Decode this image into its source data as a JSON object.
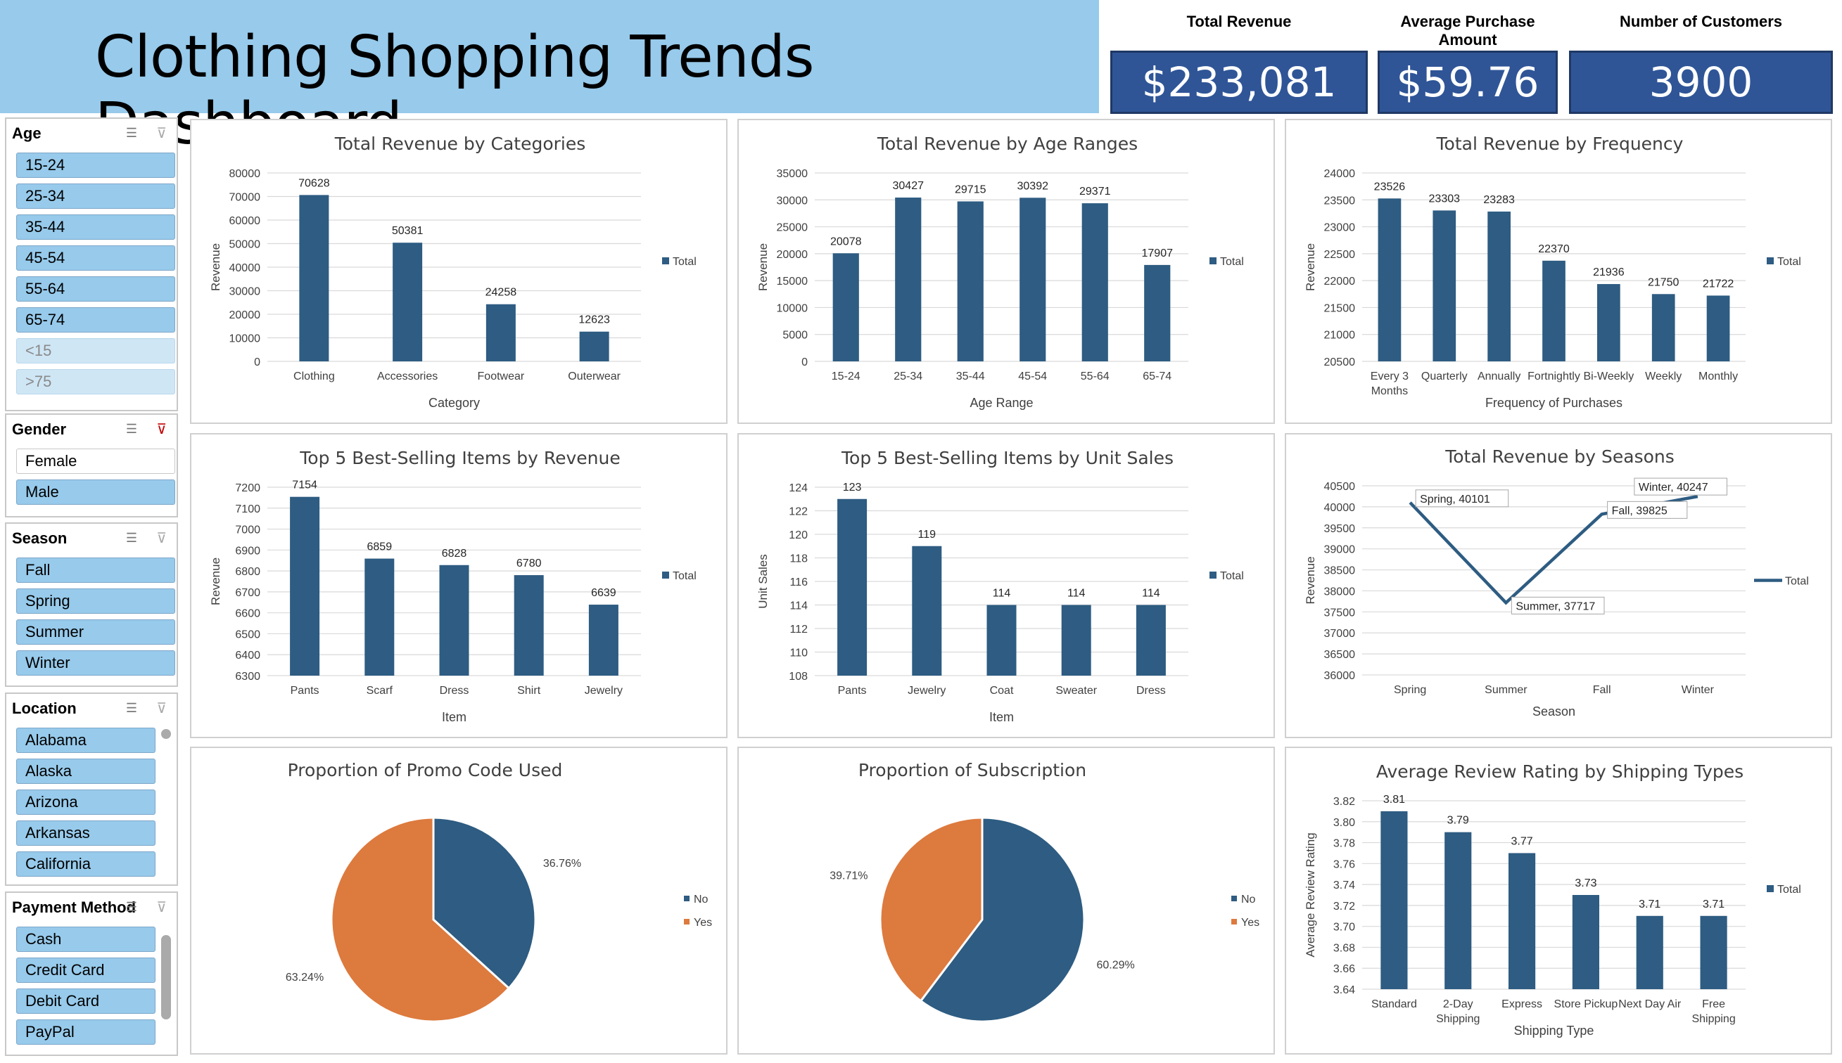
{
  "header": {
    "title": "Clothing Shopping Trends Dashboard",
    "kpis": [
      {
        "label": "Total Revenue",
        "value": "$233,081"
      },
      {
        "label": "Average Purchase Amount",
        "value": "$59.76"
      },
      {
        "label": "Number of Customers",
        "value": "3900"
      }
    ]
  },
  "slicers": {
    "age": {
      "title": "Age",
      "items": [
        {
          "label": "15-24",
          "state": "selected"
        },
        {
          "label": "25-34",
          "state": "selected"
        },
        {
          "label": "35-44",
          "state": "selected"
        },
        {
          "label": "45-54",
          "state": "selected"
        },
        {
          "label": "55-64",
          "state": "selected"
        },
        {
          "label": "65-74",
          "state": "selected"
        },
        {
          "label": "<15",
          "state": "nodata"
        },
        {
          "label": ">75",
          "state": "nodata"
        }
      ]
    },
    "gender": {
      "title": "Gender",
      "items": [
        {
          "label": "Female",
          "state": "unselected"
        },
        {
          "label": "Male",
          "state": "selected"
        }
      ]
    },
    "season": {
      "title": "Season",
      "items": [
        {
          "label": "Fall",
          "state": "selected"
        },
        {
          "label": "Spring",
          "state": "selected"
        },
        {
          "label": "Summer",
          "state": "selected"
        },
        {
          "label": "Winter",
          "state": "selected"
        }
      ]
    },
    "location": {
      "title": "Location",
      "items": [
        {
          "label": "Alabama",
          "state": "selected"
        },
        {
          "label": "Alaska",
          "state": "selected"
        },
        {
          "label": "Arizona",
          "state": "selected"
        },
        {
          "label": "Arkansas",
          "state": "selected"
        },
        {
          "label": "California",
          "state": "selected"
        }
      ]
    },
    "payment": {
      "title": "Payment Method",
      "items": [
        {
          "label": "Cash",
          "state": "selected"
        },
        {
          "label": "Credit Card",
          "state": "selected"
        },
        {
          "label": "Debit Card",
          "state": "selected"
        },
        {
          "label": "PayPal",
          "state": "selected"
        }
      ]
    }
  },
  "colors": {
    "bar": "#2E5C82",
    "orange": "#DD7A3E",
    "banner": "#97CAEB",
    "kpi": "#2F5597"
  },
  "chart_data": [
    {
      "id": "categories",
      "type": "bar",
      "title": "Total Revenue by Categories",
      "xlabel": "Category",
      "ylabel": "Revenue",
      "categories": [
        "Clothing",
        "Accessories",
        "Footwear",
        "Outerwear"
      ],
      "values": [
        70628,
        50381,
        24258,
        12623
      ],
      "ylim": [
        0,
        80000
      ],
      "yticks": [
        0,
        10000,
        20000,
        30000,
        40000,
        50000,
        60000,
        70000,
        80000
      ],
      "legend": "Total",
      "legend_position": "right",
      "grid": true
    },
    {
      "id": "age",
      "type": "bar",
      "title": "Total Revenue by Age Ranges",
      "xlabel": "Age Range",
      "ylabel": "Revenue",
      "categories": [
        "15-24",
        "25-34",
        "35-44",
        "45-54",
        "55-64",
        "65-74"
      ],
      "values": [
        20078,
        30427,
        29715,
        30392,
        29371,
        17907
      ],
      "ylim": [
        0,
        35000
      ],
      "yticks": [
        0,
        5000,
        10000,
        15000,
        20000,
        25000,
        30000,
        35000
      ],
      "legend": "Total",
      "legend_position": "right",
      "grid": true
    },
    {
      "id": "frequency",
      "type": "bar",
      "title": "Total Revenue by Frequency",
      "xlabel": "Frequency of Purchases",
      "ylabel": "Revenue",
      "categories": [
        [
          "Every 3",
          "Months"
        ],
        [
          "Quarterly"
        ],
        [
          "Annually"
        ],
        [
          "Fortnightly"
        ],
        [
          "Bi-Weekly"
        ],
        [
          "Weekly"
        ],
        [
          "Monthly"
        ]
      ],
      "values": [
        23526,
        23303,
        23283,
        22370,
        21936,
        21750,
        21722
      ],
      "ylim": [
        20500,
        24000
      ],
      "yticks": [
        20500,
        21000,
        21500,
        22000,
        22500,
        23000,
        23500,
        24000
      ],
      "legend": "Total",
      "legend_position": "right",
      "grid": true
    },
    {
      "id": "top5rev",
      "type": "bar",
      "title": "Top 5 Best-Selling Items  by Revenue",
      "xlabel": "Item",
      "ylabel": "Revenue",
      "categories": [
        "Pants",
        "Scarf",
        "Dress",
        "Shirt",
        "Jewelry"
      ],
      "values": [
        7154,
        6859,
        6828,
        6780,
        6639
      ],
      "ylim": [
        6300,
        7200
      ],
      "yticks": [
        6300,
        6400,
        6500,
        6600,
        6700,
        6800,
        6900,
        7000,
        7100,
        7200
      ],
      "legend": "Total",
      "legend_position": "right",
      "grid": true
    },
    {
      "id": "top5units",
      "type": "bar",
      "title": "Top 5 Best-Selling Items by Unit Sales",
      "xlabel": "Item",
      "ylabel": "Unit Sales",
      "categories": [
        "Pants",
        "Jewelry",
        "Coat",
        "Sweater",
        "Dress"
      ],
      "values": [
        123,
        119,
        114,
        114,
        114
      ],
      "ylim": [
        108,
        124
      ],
      "yticks": [
        108,
        110,
        112,
        114,
        116,
        118,
        120,
        122,
        124
      ],
      "legend": "Total",
      "legend_position": "right",
      "grid": true
    },
    {
      "id": "seasons",
      "type": "line",
      "title": "Total Revenue by Seasons",
      "xlabel": "Season",
      "ylabel": "Revenue",
      "categories": [
        "Spring",
        "Summer",
        "Fall",
        "Winter"
      ],
      "values": [
        40101,
        37717,
        39825,
        40247
      ],
      "point_labels": [
        "Spring, 40101",
        "Summer, 37717",
        "Fall, 39825",
        "Winter, 40247"
      ],
      "ylim": [
        36000,
        40500
      ],
      "yticks": [
        36000,
        36500,
        37000,
        37500,
        38000,
        38500,
        39000,
        39500,
        40000,
        40500
      ],
      "legend": "Total",
      "legend_position": "right",
      "grid": true
    },
    {
      "id": "promo",
      "type": "pie",
      "title": "Proportion of Promo Code Used",
      "slices": [
        {
          "label": "No",
          "value": 36.76,
          "text": "36.76%"
        },
        {
          "label": "Yes",
          "value": 63.24,
          "text": "63.24%"
        }
      ],
      "legend_position": "right"
    },
    {
      "id": "subscription",
      "type": "pie",
      "title": "Proportion of Subscription",
      "slices": [
        {
          "label": "No",
          "value": 60.29,
          "text": "60.29%"
        },
        {
          "label": "Yes",
          "value": 39.71,
          "text": "39.71%"
        }
      ],
      "legend_position": "right"
    },
    {
      "id": "shipping",
      "type": "bar",
      "title": "Average Review Rating by Shipping Types",
      "xlabel": "Shipping Type",
      "ylabel": "Average Review Rating",
      "categories": [
        [
          "Standard"
        ],
        [
          "2-Day",
          "Shipping"
        ],
        [
          "Express"
        ],
        [
          "Store Pickup"
        ],
        [
          "Next Day Air"
        ],
        [
          "Free",
          "Shipping"
        ]
      ],
      "values": [
        3.81,
        3.79,
        3.77,
        3.73,
        3.71,
        3.71
      ],
      "value_labels": [
        "3.81",
        "3.79",
        "3.77",
        "3.73",
        "3.71",
        "3.71"
      ],
      "ylim": [
        3.64,
        3.82
      ],
      "yticks": [
        "3.64",
        "3.66",
        "3.68",
        "3.70",
        "3.72",
        "3.74",
        "3.76",
        "3.78",
        "3.80",
        "3.82"
      ],
      "legend": "Total",
      "legend_position": "right",
      "grid": true
    }
  ]
}
